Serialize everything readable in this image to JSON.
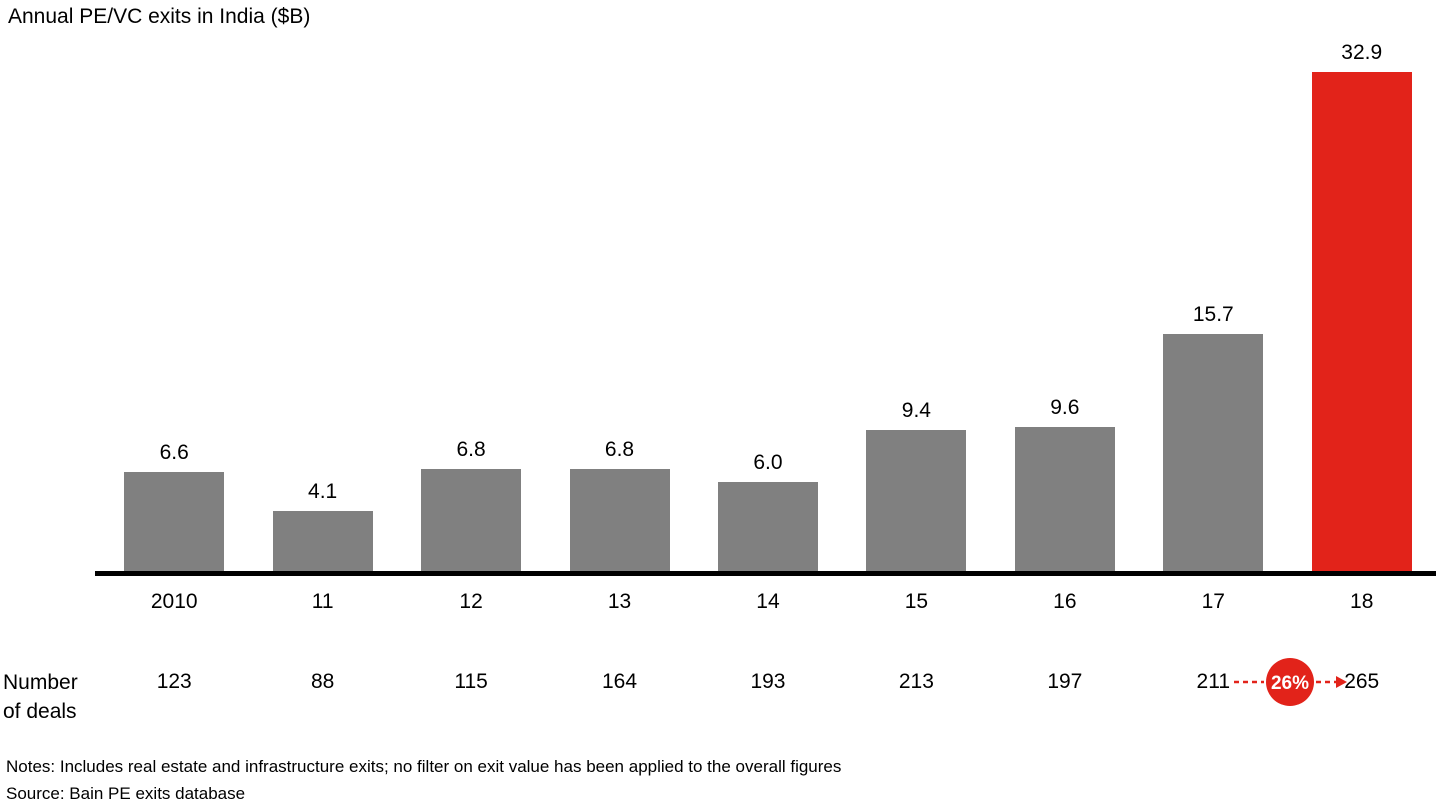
{
  "chart_data": {
    "type": "bar",
    "title": "Annual PE/VC exits in India ($B)",
    "categories": [
      "2010",
      "11",
      "12",
      "13",
      "14",
      "15",
      "16",
      "17",
      "18"
    ],
    "values": [
      6.6,
      4.1,
      6.8,
      6.8,
      6.0,
      9.4,
      9.6,
      15.7,
      32.9
    ],
    "value_labels": [
      "6.6",
      "4.1",
      "6.8",
      "6.8",
      "6.0",
      "9.4",
      "9.6",
      "15.7",
      "32.9"
    ],
    "xlabel": "",
    "ylabel": "Annual PE/VC exits in India ($B)",
    "ylim": [
      0,
      35
    ],
    "grid": false,
    "legend": "none",
    "bar_color": "#808080",
    "highlight_color": "#e2231a",
    "highlight_index": 8,
    "deals_row": {
      "label": "Number of deals",
      "values": [
        "123",
        "88",
        "115",
        "164",
        "193",
        "213",
        "197",
        "211",
        "265"
      ]
    },
    "growth_badge": {
      "text": "26%",
      "from_index": 7,
      "to_index": 8,
      "color": "#e2231a"
    }
  },
  "notes": {
    "line1": "Notes: Includes real estate and infrastructure exits; no filter on exit value has been applied to the overall figures",
    "line2": "Source: Bain PE exits database"
  }
}
